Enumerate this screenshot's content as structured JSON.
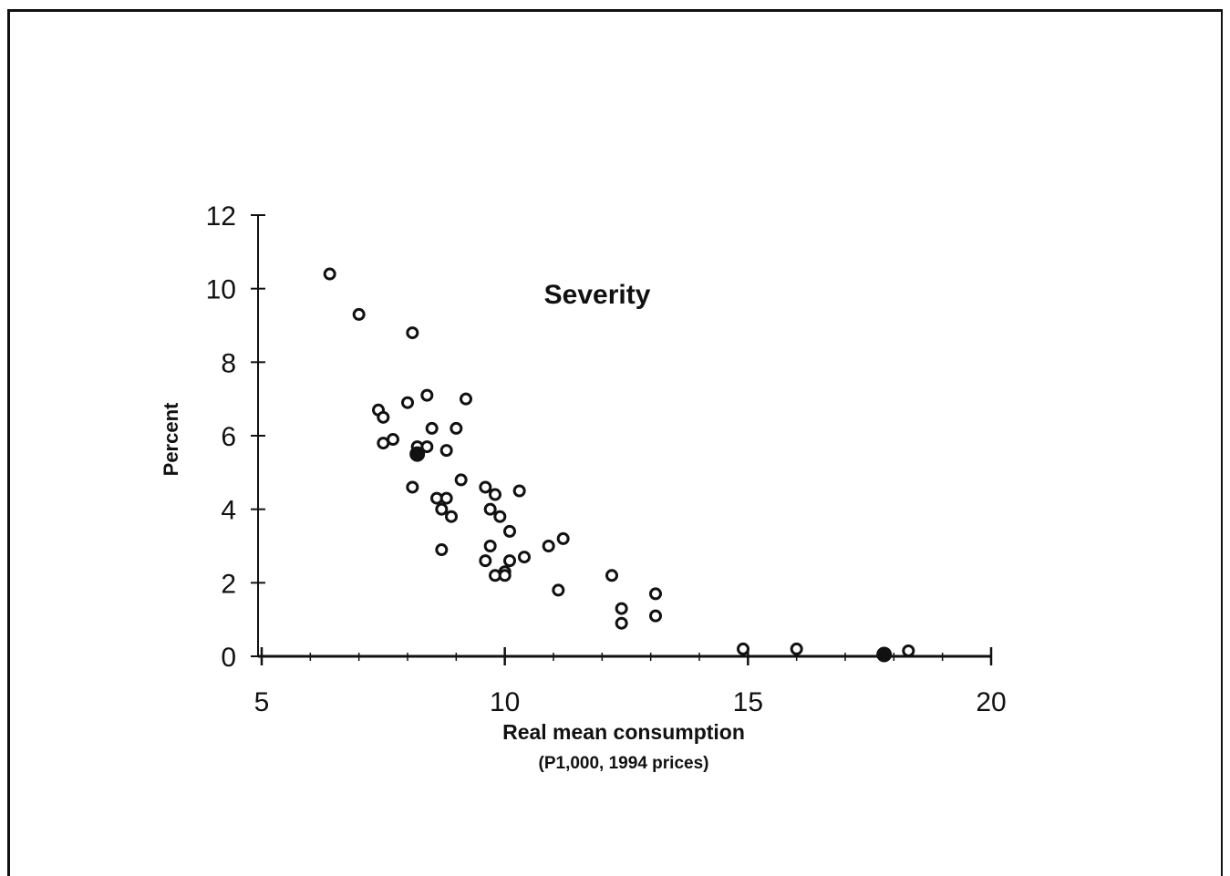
{
  "chart_data": {
    "type": "scatter",
    "title": "Severity",
    "xlabel": "Real mean consumption",
    "xlabel_sub": "(P1,000, 1994 prices)",
    "ylabel": "Percent",
    "xlim": [
      5,
      20
    ],
    "ylim": [
      0,
      12
    ],
    "xticks": [
      "5",
      "10",
      "15",
      "20"
    ],
    "yticks": [
      "0",
      "2",
      "4",
      "6",
      "8",
      "10",
      "12"
    ],
    "grid": false,
    "legend": "none",
    "marker_color": "#111111",
    "points": [
      {
        "x": 6.4,
        "y": 10.4,
        "filled": false
      },
      {
        "x": 7.0,
        "y": 9.3,
        "filled": false
      },
      {
        "x": 8.1,
        "y": 8.8,
        "filled": false
      },
      {
        "x": 7.4,
        "y": 6.7,
        "filled": false
      },
      {
        "x": 7.5,
        "y": 6.5,
        "filled": false
      },
      {
        "x": 8.0,
        "y": 6.9,
        "filled": false
      },
      {
        "x": 8.4,
        "y": 7.1,
        "filled": false
      },
      {
        "x": 9.2,
        "y": 7.0,
        "filled": false
      },
      {
        "x": 8.5,
        "y": 6.2,
        "filled": false
      },
      {
        "x": 9.0,
        "y": 6.2,
        "filled": false
      },
      {
        "x": 7.5,
        "y": 5.8,
        "filled": false
      },
      {
        "x": 7.7,
        "y": 5.9,
        "filled": false
      },
      {
        "x": 8.2,
        "y": 5.7,
        "filled": false
      },
      {
        "x": 8.4,
        "y": 5.7,
        "filled": false
      },
      {
        "x": 8.8,
        "y": 5.6,
        "filled": false
      },
      {
        "x": 8.2,
        "y": 5.5,
        "filled": true
      },
      {
        "x": 9.1,
        "y": 4.8,
        "filled": false
      },
      {
        "x": 9.6,
        "y": 4.6,
        "filled": false
      },
      {
        "x": 10.3,
        "y": 4.5,
        "filled": false
      },
      {
        "x": 8.1,
        "y": 4.6,
        "filled": false
      },
      {
        "x": 8.6,
        "y": 4.3,
        "filled": false
      },
      {
        "x": 8.8,
        "y": 4.3,
        "filled": false
      },
      {
        "x": 9.8,
        "y": 4.4,
        "filled": false
      },
      {
        "x": 8.7,
        "y": 4.0,
        "filled": false
      },
      {
        "x": 8.9,
        "y": 3.8,
        "filled": false
      },
      {
        "x": 9.7,
        "y": 4.0,
        "filled": false
      },
      {
        "x": 9.9,
        "y": 3.8,
        "filled": false
      },
      {
        "x": 10.1,
        "y": 3.4,
        "filled": false
      },
      {
        "x": 11.2,
        "y": 3.2,
        "filled": false
      },
      {
        "x": 10.9,
        "y": 3.0,
        "filled": false
      },
      {
        "x": 9.7,
        "y": 3.0,
        "filled": false
      },
      {
        "x": 8.7,
        "y": 2.9,
        "filled": false
      },
      {
        "x": 9.6,
        "y": 2.6,
        "filled": false
      },
      {
        "x": 10.1,
        "y": 2.6,
        "filled": false
      },
      {
        "x": 10.4,
        "y": 2.7,
        "filled": false
      },
      {
        "x": 9.8,
        "y": 2.2,
        "filled": false
      },
      {
        "x": 10.0,
        "y": 2.3,
        "filled": false
      },
      {
        "x": 10.0,
        "y": 2.2,
        "filled": false
      },
      {
        "x": 12.2,
        "y": 2.2,
        "filled": false
      },
      {
        "x": 11.1,
        "y": 1.8,
        "filled": false
      },
      {
        "x": 13.1,
        "y": 1.7,
        "filled": false
      },
      {
        "x": 12.4,
        "y": 1.3,
        "filled": false
      },
      {
        "x": 13.1,
        "y": 1.1,
        "filled": false
      },
      {
        "x": 12.4,
        "y": 0.9,
        "filled": false
      },
      {
        "x": 14.9,
        "y": 0.2,
        "filled": false
      },
      {
        "x": 16.0,
        "y": 0.2,
        "filled": false
      },
      {
        "x": 17.8,
        "y": 0.05,
        "filled": true
      },
      {
        "x": 18.3,
        "y": 0.15,
        "filled": false
      }
    ]
  }
}
